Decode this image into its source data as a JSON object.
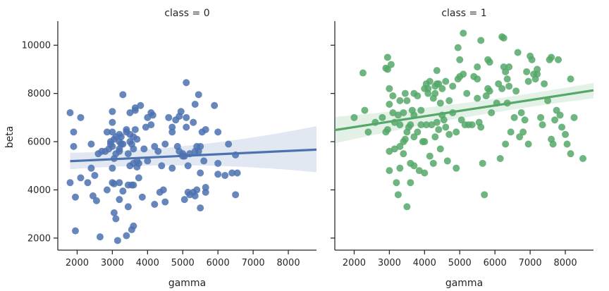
{
  "chart_data": [
    {
      "type": "scatter",
      "title": "class = 0",
      "xlabel": "gamma",
      "ylabel": "beta",
      "xlim": [
        1450,
        8800
      ],
      "ylim": [
        1500,
        11000
      ],
      "xticks": [
        2000,
        3000,
        4000,
        5000,
        6000,
        7000,
        8000
      ],
      "yticks": [
        2000,
        4000,
        6000,
        8000,
        10000
      ],
      "color": "#4c72b0",
      "regression": {
        "x": [
          1800,
          8800
        ],
        "y": [
          5190,
          5670
        ],
        "ci_upper": [
          5540,
          6640
        ],
        "ci_lower": [
          4850,
          4730
        ]
      },
      "points": [
        [
          1800,
          7200
        ],
        [
          1800,
          4300
        ],
        [
          1900,
          5800
        ],
        [
          1900,
          6400
        ],
        [
          1950,
          3700
        ],
        [
          1950,
          2300
        ],
        [
          2100,
          7000
        ],
        [
          2100,
          4500
        ],
        [
          2300,
          4300
        ],
        [
          2400,
          5900
        ],
        [
          2400,
          4900
        ],
        [
          2450,
          3750
        ],
        [
          2500,
          4600
        ],
        [
          2550,
          3550
        ],
        [
          2600,
          5500
        ],
        [
          2650,
          2050
        ],
        [
          2700,
          5600
        ],
        [
          2800,
          5600
        ],
        [
          2850,
          4000
        ],
        [
          2850,
          6400
        ],
        [
          2900,
          5700
        ],
        [
          2950,
          5900
        ],
        [
          2950,
          6000
        ],
        [
          3000,
          7250
        ],
        [
          3000,
          6800
        ],
        [
          3000,
          6400
        ],
        [
          3000,
          5800
        ],
        [
          3000,
          4900
        ],
        [
          3000,
          4300
        ],
        [
          3050,
          6100
        ],
        [
          3050,
          5300
        ],
        [
          3050,
          4250
        ],
        [
          3050,
          3050
        ],
        [
          3100,
          6200
        ],
        [
          3100,
          5500
        ],
        [
          3100,
          2800
        ],
        [
          3150,
          1900
        ],
        [
          3200,
          6300
        ],
        [
          3200,
          6000
        ],
        [
          3200,
          5700
        ],
        [
          3200,
          5600
        ],
        [
          3200,
          4300
        ],
        [
          3200,
          3600
        ],
        [
          3250,
          6200
        ],
        [
          3250,
          5900
        ],
        [
          3300,
          7950
        ],
        [
          3300,
          5900
        ],
        [
          3300,
          3950
        ],
        [
          3400,
          6500
        ],
        [
          3400,
          6400
        ],
        [
          3400,
          2100
        ],
        [
          3450,
          5500
        ],
        [
          3450,
          4200
        ],
        [
          3450,
          3300
        ],
        [
          3500,
          7200
        ],
        [
          3500,
          6300
        ],
        [
          3500,
          6000
        ],
        [
          3500,
          5000
        ],
        [
          3550,
          5900
        ],
        [
          3550,
          4200
        ],
        [
          3550,
          2350
        ],
        [
          3600,
          6200
        ],
        [
          3600,
          5700
        ],
        [
          3600,
          5100
        ],
        [
          3600,
          4200
        ],
        [
          3600,
          2500
        ],
        [
          3650,
          7400
        ],
        [
          3650,
          7300
        ],
        [
          3650,
          6500
        ],
        [
          3700,
          6100
        ],
        [
          3700,
          5200
        ],
        [
          3700,
          4950
        ],
        [
          3750,
          5100
        ],
        [
          3750,
          4500
        ],
        [
          3800,
          7500
        ],
        [
          3850,
          3700
        ],
        [
          3900,
          5700
        ],
        [
          3950,
          6600
        ],
        [
          4000,
          7000
        ],
        [
          4000,
          5200
        ],
        [
          4100,
          7200
        ],
        [
          4100,
          6700
        ],
        [
          4150,
          7100
        ],
        [
          4200,
          5800
        ],
        [
          4200,
          3400
        ],
        [
          4300,
          5600
        ],
        [
          4350,
          3900
        ],
        [
          4400,
          5000
        ],
        [
          4450,
          4000
        ],
        [
          4500,
          5900
        ],
        [
          4500,
          3500
        ],
        [
          4600,
          7000
        ],
        [
          4700,
          6600
        ],
        [
          4700,
          6400
        ],
        [
          4700,
          4900
        ],
        [
          4800,
          6900
        ],
        [
          4850,
          5800
        ],
        [
          4900,
          7050
        ],
        [
          4900,
          5600
        ],
        [
          4950,
          7250
        ],
        [
          5000,
          5500
        ],
        [
          5000,
          5400
        ],
        [
          5050,
          5400
        ],
        [
          5050,
          3600
        ],
        [
          5100,
          8450
        ],
        [
          5100,
          7000
        ],
        [
          5100,
          6600
        ],
        [
          5150,
          5000
        ],
        [
          5150,
          3900
        ],
        [
          5200,
          5500
        ],
        [
          5200,
          3800
        ],
        [
          5300,
          6800
        ],
        [
          5300,
          3900
        ],
        [
          5350,
          7550
        ],
        [
          5350,
          5600
        ],
        [
          5350,
          3750
        ],
        [
          5400,
          5800
        ],
        [
          5400,
          4000
        ],
        [
          5450,
          7950
        ],
        [
          5450,
          5600
        ],
        [
          5500,
          5800
        ],
        [
          5500,
          4700
        ],
        [
          5500,
          3250
        ],
        [
          5550,
          6400
        ],
        [
          5600,
          5200
        ],
        [
          5650,
          6500
        ],
        [
          5650,
          4100
        ],
        [
          5650,
          3900
        ],
        [
          5900,
          7500
        ],
        [
          6000,
          6400
        ],
        [
          6000,
          5100
        ],
        [
          6000,
          4650
        ],
        [
          6200,
          4600
        ],
        [
          6300,
          5900
        ],
        [
          6400,
          4700
        ],
        [
          6500,
          5450
        ],
        [
          6500,
          3800
        ],
        [
          6550,
          4700
        ]
      ]
    },
    {
      "type": "scatter",
      "title": "class = 1",
      "xlabel": "gamma",
      "ylabel": "",
      "xlim": [
        1450,
        8800
      ],
      "ylim": [
        1500,
        11000
      ],
      "xticks": [
        2000,
        3000,
        4000,
        5000,
        6000,
        7000,
        8000
      ],
      "yticks": [
        2000,
        4000,
        6000,
        8000,
        10000
      ],
      "color": "#55a868",
      "regression": {
        "x": [
          1450,
          8800
        ],
        "y": [
          6480,
          8130
        ],
        "ci_upper": [
          7030,
          8440
        ],
        "ci_lower": [
          5930,
          7800
        ]
      },
      "points": [
        [
          2000,
          7000
        ],
        [
          2250,
          8850
        ],
        [
          2300,
          7300
        ],
        [
          2400,
          6400
        ],
        [
          2600,
          6800
        ],
        [
          2800,
          7000
        ],
        [
          2900,
          9050
        ],
        [
          2900,
          6400
        ],
        [
          2950,
          9500
        ],
        [
          2950,
          9000
        ],
        [
          2950,
          6500
        ],
        [
          3000,
          8200
        ],
        [
          3000,
          7550
        ],
        [
          3000,
          5600
        ],
        [
          3000,
          4800
        ],
        [
          3050,
          9200
        ],
        [
          3100,
          7900
        ],
        [
          3100,
          7200
        ],
        [
          3150,
          6800
        ],
        [
          3150,
          5700
        ],
        [
          3200,
          4300
        ],
        [
          3250,
          7100
        ],
        [
          3250,
          3800
        ],
        [
          3300,
          7700
        ],
        [
          3300,
          6700
        ],
        [
          3300,
          5800
        ],
        [
          3300,
          4900
        ],
        [
          3400,
          7200
        ],
        [
          3400,
          6000
        ],
        [
          3400,
          5500
        ],
        [
          3450,
          8000
        ],
        [
          3450,
          6100
        ],
        [
          3500,
          7700
        ],
        [
          3500,
          6400
        ],
        [
          3500,
          3300
        ],
        [
          3550,
          6600
        ],
        [
          3600,
          6700
        ],
        [
          3600,
          5100
        ],
        [
          3600,
          4300
        ],
        [
          3650,
          7300
        ],
        [
          3700,
          8000
        ],
        [
          3700,
          7100
        ],
        [
          3700,
          6200
        ],
        [
          3700,
          5000
        ],
        [
          3800,
          7900
        ],
        [
          3800,
          6400
        ],
        [
          3850,
          4800
        ],
        [
          3900,
          7300
        ],
        [
          3900,
          6700
        ],
        [
          3950,
          6000
        ],
        [
          4000,
          8200
        ],
        [
          4000,
          6000
        ],
        [
          4000,
          4700
        ],
        [
          4050,
          8400
        ],
        [
          4050,
          6700
        ],
        [
          4100,
          8200
        ],
        [
          4100,
          8000
        ],
        [
          4150,
          8500
        ],
        [
          4150,
          5400
        ],
        [
          4200,
          6700
        ],
        [
          4250,
          7800
        ],
        [
          4250,
          5100
        ],
        [
          4300,
          8300
        ],
        [
          4300,
          8000
        ],
        [
          4300,
          6200
        ],
        [
          4350,
          8950
        ],
        [
          4350,
          8400
        ],
        [
          4350,
          6800
        ],
        [
          4400,
          8400
        ],
        [
          4400,
          6500
        ],
        [
          4450,
          7600
        ],
        [
          4450,
          5700
        ],
        [
          4500,
          8200
        ],
        [
          4500,
          7100
        ],
        [
          4550,
          6900
        ],
        [
          4600,
          8500
        ],
        [
          4600,
          6600
        ],
        [
          4650,
          5200
        ],
        [
          4700,
          7700
        ],
        [
          4700,
          6300
        ],
        [
          4800,
          8300
        ],
        [
          4800,
          7200
        ],
        [
          4900,
          4900
        ],
        [
          4900,
          6400
        ],
        [
          4950,
          9900
        ],
        [
          4950,
          8600
        ],
        [
          5000,
          9400
        ],
        [
          5000,
          8700
        ],
        [
          5050,
          6900
        ],
        [
          5100,
          10500
        ],
        [
          5100,
          8800
        ],
        [
          5150,
          6700
        ],
        [
          5200,
          8000
        ],
        [
          5250,
          6700
        ],
        [
          5350,
          6700
        ],
        [
          5400,
          8700
        ],
        [
          5500,
          9100
        ],
        [
          5500,
          8600
        ],
        [
          5500,
          7800
        ],
        [
          5550,
          6800
        ],
        [
          5600,
          10200
        ],
        [
          5600,
          6600
        ],
        [
          5650,
          5100
        ],
        [
          5700,
          3800
        ],
        [
          5750,
          7900
        ],
        [
          5800,
          9400
        ],
        [
          5800,
          8200
        ],
        [
          5850,
          9300
        ],
        [
          5850,
          8100
        ],
        [
          5900,
          7200
        ],
        [
          6050,
          7600
        ],
        [
          6100,
          8400
        ],
        [
          6150,
          5300
        ],
        [
          6200,
          10350
        ],
        [
          6200,
          8200
        ],
        [
          6250,
          10300
        ],
        [
          6250,
          9100
        ],
        [
          6300,
          8900
        ],
        [
          6300,
          5900
        ],
        [
          6350,
          8600
        ],
        [
          6350,
          7600
        ],
        [
          6400,
          9100
        ],
        [
          6400,
          8300
        ],
        [
          6450,
          6400
        ],
        [
          6550,
          7000
        ],
        [
          6600,
          8100
        ],
        [
          6650,
          9700
        ],
        [
          6700,
          6200
        ],
        [
          6750,
          7200
        ],
        [
          6800,
          6400
        ],
        [
          6850,
          6900
        ],
        [
          6900,
          8900
        ],
        [
          6950,
          8500
        ],
        [
          6950,
          5900
        ],
        [
          7000,
          9550
        ],
        [
          7050,
          9400
        ],
        [
          7100,
          8800
        ],
        [
          7150,
          8600
        ],
        [
          7200,
          9000
        ],
        [
          7200,
          8800
        ],
        [
          7300,
          7000
        ],
        [
          7350,
          6700
        ],
        [
          7400,
          8400
        ],
        [
          7500,
          7700
        ],
        [
          7550,
          9400
        ],
        [
          7600,
          9500
        ],
        [
          7600,
          6100
        ],
        [
          7650,
          5900
        ],
        [
          7700,
          6900
        ],
        [
          7750,
          7300
        ],
        [
          7800,
          9400
        ],
        [
          7850,
          7100
        ],
        [
          7900,
          6600
        ],
        [
          8000,
          6300
        ],
        [
          8050,
          5900
        ],
        [
          8150,
          8600
        ],
        [
          8150,
          5500
        ],
        [
          8250,
          7000
        ],
        [
          8500,
          5300
        ]
      ]
    }
  ]
}
